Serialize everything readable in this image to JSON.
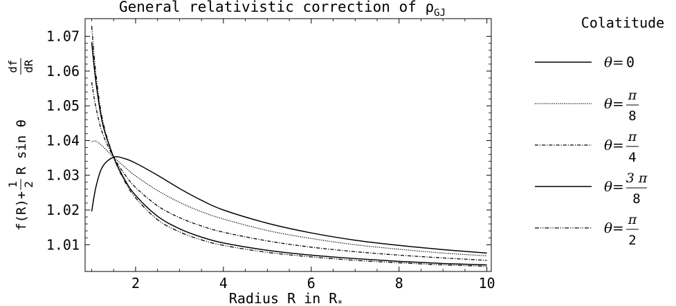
{
  "chart_data": {
    "type": "line",
    "title": "General relativistic correction of ρ",
    "title_subscript": "GJ",
    "xlabel": "Radius R in R",
    "xlabel_subscript": "*",
    "ylabel_prefix": "f(R)+",
    "ylabel_frac_num": "1",
    "ylabel_frac_den": "2",
    "ylabel_mid": "R sin θ",
    "ylabel_deriv_num": "df",
    "ylabel_deriv_den": "dR",
    "xlim": [
      0.85,
      10.1
    ],
    "ylim": [
      1.0023,
      1.0751
    ],
    "x_ticks": [
      2,
      4,
      6,
      8,
      10
    ],
    "x_tick_labels": [
      "2",
      "4",
      "6",
      "8",
      "10"
    ],
    "y_ticks": [
      1.01,
      1.02,
      1.03,
      1.04,
      1.05,
      1.06,
      1.07
    ],
    "y_tick_labels": [
      "1.01",
      "1.02",
      "1.03",
      "1.04",
      "1.05",
      "1.06",
      "1.07"
    ],
    "grid": false,
    "legend_title": "Colatitude",
    "legend_position": "right",
    "x": [
      1,
      1.1,
      1.25,
      1.5,
      1.75,
      2,
      2.5,
      3,
      3.5,
      4,
      5,
      6,
      7,
      8,
      9,
      10
    ],
    "series": [
      {
        "name": "θ=0",
        "theta_lhs": "θ=",
        "label_plain": "0",
        "label_num": "",
        "label_den": "",
        "style": "solid",
        "stroke": "#000000",
        "values": [
          1.0196,
          1.0268,
          1.0325,
          1.0352,
          1.0348,
          1.0335,
          1.03,
          1.0262,
          1.0228,
          1.02,
          1.0162,
          1.0134,
          1.0113,
          1.0098,
          1.0086,
          1.0076
        ]
      },
      {
        "name": "θ=π/8",
        "theta_lhs": "θ=",
        "label_plain": "",
        "label_num": "π",
        "label_den": "8",
        "style": "dotted",
        "stroke": "#000000",
        "values": [
          1.0397,
          1.0398,
          1.0383,
          1.0352,
          1.0324,
          1.0298,
          1.0256,
          1.0222,
          1.0195,
          1.0174,
          1.0141,
          1.0118,
          1.01,
          1.0087,
          1.0076,
          1.0068
        ]
      },
      {
        "name": "θ=π/4",
        "theta_lhs": "θ=",
        "label_plain": "",
        "label_num": "π",
        "label_den": "4",
        "style": "dashdot",
        "stroke": "#000000",
        "values": [
          1.0568,
          1.0493,
          1.042,
          1.0352,
          1.0303,
          1.0265,
          1.0212,
          1.0178,
          1.0154,
          1.0136,
          1.0111,
          1.0093,
          1.008,
          1.007,
          1.0062,
          1.0055
        ]
      },
      {
        "name": "θ=3π/8",
        "theta_lhs": "θ=",
        "label_plain": "",
        "label_num": "3 π",
        "label_den": "8",
        "style": "solid",
        "stroke": "#000000",
        "values": [
          1.0683,
          1.0565,
          1.0448,
          1.0352,
          1.0288,
          1.0242,
          1.0182,
          1.0146,
          1.0122,
          1.0105,
          1.0084,
          1.007,
          1.006,
          1.0052,
          1.0046,
          1.0042
        ]
      },
      {
        "name": "θ=π/2",
        "theta_lhs": "θ=",
        "label_plain": "",
        "label_num": "π",
        "label_den": "2",
        "style": "dashdotdot",
        "stroke": "#000000",
        "values": [
          1.073,
          1.0588,
          1.0458,
          1.0352,
          1.0283,
          1.0235,
          1.0172,
          1.0137,
          1.0114,
          1.0098,
          1.0078,
          1.0065,
          1.0055,
          1.0048,
          1.0042,
          1.0038
        ]
      }
    ]
  }
}
